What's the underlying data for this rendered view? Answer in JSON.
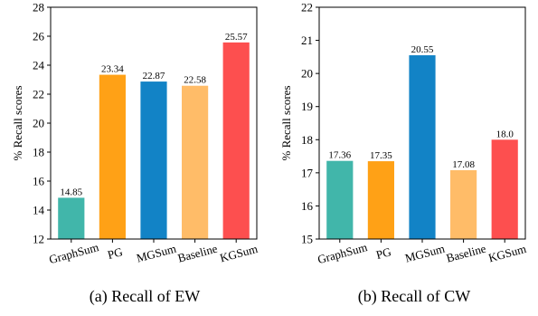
{
  "chart_data": [
    {
      "type": "bar",
      "ylabel": "% Recall scores",
      "ylim": [
        12,
        28
      ],
      "yticks": [
        12,
        14,
        16,
        18,
        20,
        22,
        24,
        26,
        28
      ],
      "categories": [
        "GraphSum",
        "PG",
        "MGSum",
        "Baseline",
        "KGSum"
      ],
      "values": [
        14.85,
        23.34,
        22.87,
        22.58,
        25.57
      ],
      "value_labels": [
        "14.85",
        "23.34",
        "22.87",
        "22.58",
        "25.57"
      ],
      "colors": [
        "#41b6aa",
        "#ffa116",
        "#1283c6",
        "#ffbc68",
        "#fd4f4f"
      ],
      "caption": "(a) Recall of EW",
      "grid": false
    },
    {
      "type": "bar",
      "ylabel": "% Recall scores",
      "ylim": [
        15,
        22
      ],
      "yticks": [
        15,
        16,
        17,
        18,
        19,
        20,
        21,
        22
      ],
      "categories": [
        "GraphSum",
        "PG",
        "MGSum",
        "Baseline",
        "KGSum"
      ],
      "values": [
        17.36,
        17.35,
        20.55,
        17.08,
        18.0
      ],
      "value_labels": [
        "17.36",
        "17.35",
        "20.55",
        "17.08",
        "18.0"
      ],
      "colors": [
        "#41b6aa",
        "#ffa116",
        "#1283c6",
        "#ffbc68",
        "#fd4f4f"
      ],
      "caption": "(b) Recall of CW",
      "grid": false
    }
  ]
}
